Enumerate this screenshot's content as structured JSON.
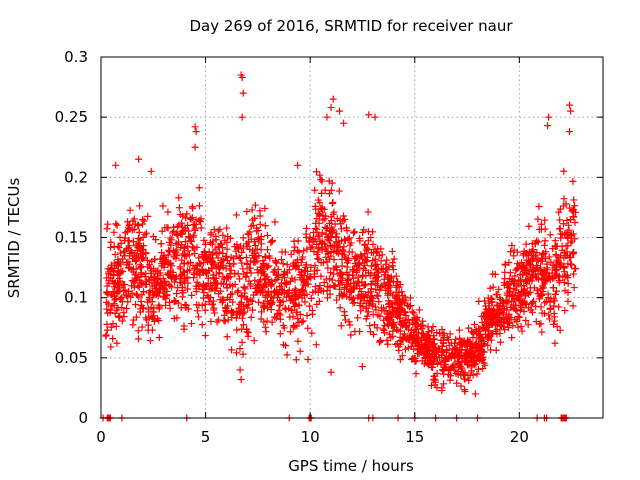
{
  "chart_data": {
    "type": "scatter",
    "title": "Day 269 of 2016, SRMTID for receiver naur",
    "xlabel": "GPS time / hours",
    "ylabel": "SRMTID / TECUs",
    "xlim": [
      0,
      24
    ],
    "ylim": [
      0,
      0.3
    ],
    "xticks": [
      0,
      5,
      10,
      15,
      20
    ],
    "xtick_labels": [
      "0",
      "5",
      "10",
      "15",
      "20"
    ],
    "yticks": [
      0,
      0.05,
      0.1,
      0.15,
      0.2,
      0.25,
      0.3
    ],
    "ytick_labels": [
      "0",
      "0.05",
      "0.1",
      "0.15",
      "0.2",
      "0.25",
      "0.3"
    ],
    "grid": true,
    "marker": "+",
    "color": "#ff0000",
    "series": [
      {
        "name": "SRMTID",
        "profile": {
          "hours": [
            0.5,
            1,
            1.5,
            2,
            2.5,
            3,
            3.5,
            4,
            4.5,
            5,
            5.5,
            6,
            6.5,
            7,
            7.5,
            8,
            8.5,
            9,
            9.5,
            10,
            10.5,
            11,
            11.5,
            12,
            12.5,
            13,
            13.5,
            14,
            14.5,
            15,
            15.5,
            16,
            16.5,
            17,
            17.5,
            18,
            18.5,
            19,
            19.5,
            20,
            20.5,
            21,
            21.5,
            22,
            22.5
          ],
          "median": [
            0.11,
            0.12,
            0.13,
            0.12,
            0.11,
            0.12,
            0.12,
            0.13,
            0.14,
            0.12,
            0.12,
            0.11,
            0.1,
            0.12,
            0.13,
            0.11,
            0.11,
            0.1,
            0.11,
            0.12,
            0.15,
            0.15,
            0.13,
            0.11,
            0.11,
            0.12,
            0.1,
            0.1,
            0.08,
            0.07,
            0.06,
            0.05,
            0.05,
            0.05,
            0.05,
            0.06,
            0.08,
            0.09,
            0.1,
            0.11,
            0.12,
            0.12,
            0.11,
            0.14,
            0.15
          ],
          "spread": [
            0.04,
            0.04,
            0.045,
            0.045,
            0.04,
            0.04,
            0.04,
            0.045,
            0.05,
            0.04,
            0.04,
            0.04,
            0.045,
            0.05,
            0.045,
            0.04,
            0.035,
            0.035,
            0.04,
            0.05,
            0.05,
            0.05,
            0.045,
            0.04,
            0.04,
            0.045,
            0.04,
            0.035,
            0.03,
            0.025,
            0.02,
            0.02,
            0.02,
            0.02,
            0.02,
            0.02,
            0.025,
            0.03,
            0.03,
            0.035,
            0.04,
            0.04,
            0.04,
            0.045,
            0.045
          ]
        },
        "outliers": [
          [
            6.7,
            0.285
          ],
          [
            6.75,
            0.283
          ],
          [
            6.8,
            0.27
          ],
          [
            6.75,
            0.25
          ],
          [
            4.5,
            0.242
          ],
          [
            4.55,
            0.238
          ],
          [
            4.5,
            0.225
          ],
          [
            11.1,
            0.265
          ],
          [
            11.0,
            0.258
          ],
          [
            10.8,
            0.25
          ],
          [
            11.4,
            0.255
          ],
          [
            11.6,
            0.245
          ],
          [
            12.8,
            0.252
          ],
          [
            13.1,
            0.25
          ],
          [
            21.4,
            0.25
          ],
          [
            21.35,
            0.243
          ],
          [
            22.4,
            0.26
          ],
          [
            22.45,
            0.255
          ],
          [
            22.4,
            0.238
          ],
          [
            6.65,
            0.04
          ],
          [
            6.7,
            0.032
          ],
          [
            11.0,
            0.038
          ],
          [
            17.9,
            0.02
          ],
          [
            15.8,
            0.027
          ],
          [
            16.3,
            0.025
          ],
          [
            17.4,
            0.022
          ],
          [
            1.8,
            0.215
          ],
          [
            2.4,
            0.205
          ],
          [
            9.4,
            0.21
          ],
          [
            0.7,
            0.21
          ]
        ],
        "zero_points": [
          0.1,
          0.3,
          0.35,
          0.4,
          0.45,
          1.0,
          4.1,
          9.0,
          9.95,
          10.0,
          10.05,
          12.8,
          13.0,
          14.2,
          15.0,
          16.0,
          17.0,
          18.0,
          20.85,
          21.2,
          21.3,
          22.0,
          22.05,
          22.1,
          22.15,
          22.2,
          22.25
        ]
      }
    ]
  }
}
